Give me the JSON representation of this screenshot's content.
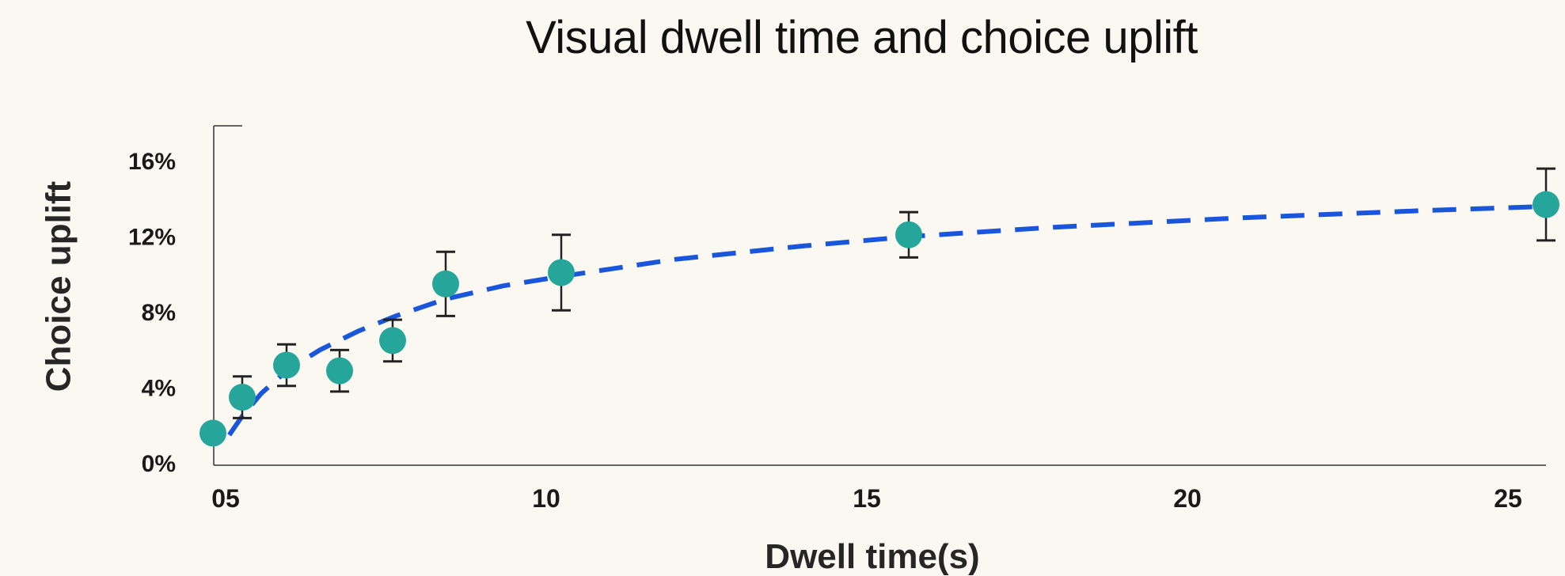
{
  "chart_data": {
    "type": "scatter",
    "title": "Visual dwell time and choice uplift",
    "xlabel": "Dwell time(s)",
    "ylabel": "Choice uplift",
    "x_ticks": [
      {
        "value": 5,
        "label": "05"
      },
      {
        "value": 10,
        "label": "10"
      },
      {
        "value": 15,
        "label": "15"
      },
      {
        "value": 20,
        "label": "20"
      },
      {
        "value": 25,
        "label": "25"
      }
    ],
    "y_ticks": [
      {
        "value": 0,
        "label": "0%"
      },
      {
        "value": 4,
        "label": "4%"
      },
      {
        "value": 8,
        "label": "8%"
      },
      {
        "value": 12,
        "label": "12%"
      },
      {
        "value": 16,
        "label": "16%"
      }
    ],
    "xlim": [
      4.75,
      25.8
    ],
    "ylim": [
      0,
      18
    ],
    "grid": false,
    "series": [
      {
        "type": "scatter",
        "color": "#26a69a",
        "points": [
          {
            "x": 4.75,
            "y": 1.7,
            "err": null
          },
          {
            "x": 5.2,
            "y": 3.6,
            "err": 1.1
          },
          {
            "x": 5.9,
            "y": 5.3,
            "err": 1.1
          },
          {
            "x": 6.7,
            "y": 5.0,
            "err": 1.1
          },
          {
            "x": 7.55,
            "y": 6.6,
            "err": 1.1
          },
          {
            "x": 8.4,
            "y": 9.6,
            "err": 1.7
          },
          {
            "x": 10.2,
            "y": 10.2,
            "err": 2.0
          },
          {
            "x": 15.7,
            "y": 12.2,
            "err": 1.2
          },
          {
            "x": 25.8,
            "y": 13.8,
            "err": 1.9
          }
        ]
      },
      {
        "type": "line",
        "style": "dashed",
        "color": "#1a56db",
        "fit": "logarithmic",
        "x": [
          5.0,
          5.2,
          5.5,
          5.9,
          6.4,
          7.0,
          7.6,
          8.4,
          9.3,
          10.2,
          12.0,
          14.0,
          15.7,
          18.0,
          21.0,
          24.0,
          25.8
        ],
        "y": [
          1.6,
          2.6,
          3.8,
          5.0,
          6.1,
          7.1,
          7.9,
          8.8,
          9.5,
          10.0,
          10.9,
          11.6,
          12.1,
          12.6,
          13.1,
          13.5,
          13.7
        ]
      }
    ]
  }
}
